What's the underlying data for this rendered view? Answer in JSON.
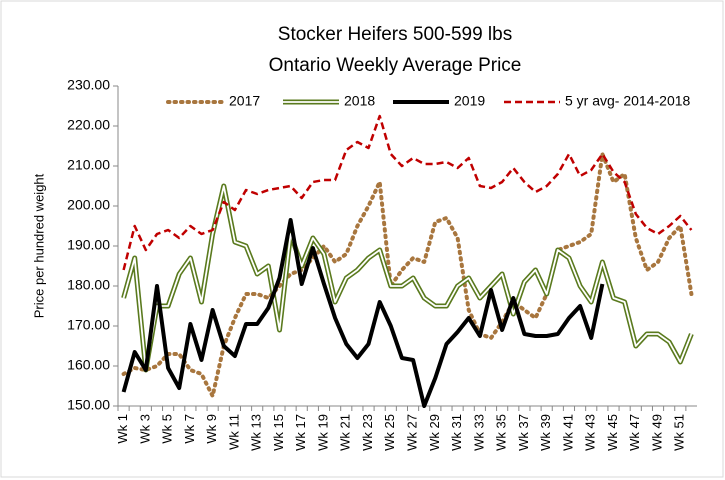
{
  "chart_data": {
    "type": "line",
    "title": [
      "Stocker Heifers 500-599 lbs",
      "Ontario Weekly Average  Price"
    ],
    "y_label": "Price per hundred weight",
    "categories": [
      "Wk 1",
      null,
      "Wk 3",
      null,
      "Wk 5",
      null,
      "Wk 7",
      null,
      "Wk 9",
      null,
      "Wk 11",
      null,
      "Wk 13",
      null,
      "Wk 15",
      null,
      "Wk 17",
      null,
      "Wk 19",
      null,
      "Wk 21",
      null,
      "Wk 23",
      null,
      "Wk 25",
      null,
      "Wk 27",
      null,
      "Wk 29",
      null,
      "Wk 31",
      null,
      "Wk 33",
      null,
      "Wk 35",
      null,
      "Wk 37",
      null,
      "Wk 39",
      null,
      "Wk 41",
      null,
      "Wk 43",
      null,
      "Wk 45",
      null,
      "Wk 47",
      null,
      "Wk 49",
      null,
      "Wk 51",
      null
    ],
    "ylim": [
      150,
      230
    ],
    "yticks": [
      {
        "value": 150,
        "label": "150.00"
      },
      {
        "value": 160,
        "label": "160.00"
      },
      {
        "value": 170,
        "label": "170.00"
      },
      {
        "value": 180,
        "label": "180.00"
      },
      {
        "value": 190,
        "label": "190.00"
      },
      {
        "value": 200,
        "label": "200.00"
      },
      {
        "value": 210,
        "label": "210.00"
      },
      {
        "value": 220,
        "label": "220.00"
      },
      {
        "value": 230,
        "label": "230.00"
      }
    ],
    "grid": false,
    "legend": "top",
    "series": [
      {
        "name": "2017",
        "color": "#a8763e",
        "style": "dotted",
        "values": [
          158,
          159.5,
          159,
          160,
          163,
          163,
          159,
          158,
          152.5,
          165,
          172,
          178,
          178,
          177,
          180,
          183,
          184,
          187,
          190,
          186,
          188,
          195,
          200,
          206,
          180,
          184,
          187,
          186,
          196,
          197,
          192,
          174,
          168,
          167,
          171,
          176,
          174,
          172,
          178,
          189,
          190,
          191,
          193,
          213,
          206,
          208,
          192,
          184,
          186,
          192,
          195,
          178
        ]
      },
      {
        "name": "2018",
        "color": "#5a7a1e",
        "style": "double",
        "values": [
          177,
          187,
          159,
          175,
          175,
          183,
          187,
          176,
          193,
          205,
          191,
          190,
          183,
          185,
          169,
          193,
          185,
          192,
          188,
          176,
          182,
          184,
          187,
          189,
          180,
          180,
          182,
          177,
          175,
          175,
          180,
          182,
          177,
          180,
          183,
          173,
          181,
          184,
          178,
          189,
          187,
          180,
          176,
          186,
          177,
          176,
          165,
          168,
          168,
          166,
          161,
          168
        ]
      },
      {
        "name": "2019",
        "color": "#000000",
        "style": "thick",
        "values": [
          153.5,
          163.5,
          159,
          180,
          159.5,
          154.5,
          170.5,
          161.5,
          174,
          165,
          162.5,
          170.5,
          170.5,
          174.5,
          182,
          196.5,
          180.5,
          189.5,
          180.5,
          172,
          165.5,
          162,
          165.5,
          176,
          170,
          162,
          161.5,
          150,
          157,
          165.5,
          168.5,
          172,
          167.5,
          179,
          169,
          177,
          168,
          167.5,
          167.5,
          168,
          172,
          175,
          167,
          180.5,
          null,
          null,
          null,
          null,
          null,
          null,
          null,
          null
        ]
      },
      {
        "name": "5 yr avg- 2014-2018",
        "color": "#c00000",
        "style": "dashed",
        "values": [
          184,
          195,
          189,
          193,
          194,
          192,
          195,
          193,
          194,
          201,
          199,
          204,
          203,
          204,
          204.5,
          205,
          202,
          206,
          206.5,
          206.5,
          214,
          216,
          214.5,
          222.5,
          213,
          210,
          212,
          210.5,
          210.5,
          211,
          209.5,
          212,
          205,
          204.5,
          206,
          209.5,
          206,
          203.5,
          205,
          208,
          213,
          207.5,
          209,
          213,
          208.5,
          206,
          198,
          194.5,
          193,
          195,
          197.5,
          194
        ]
      }
    ]
  }
}
